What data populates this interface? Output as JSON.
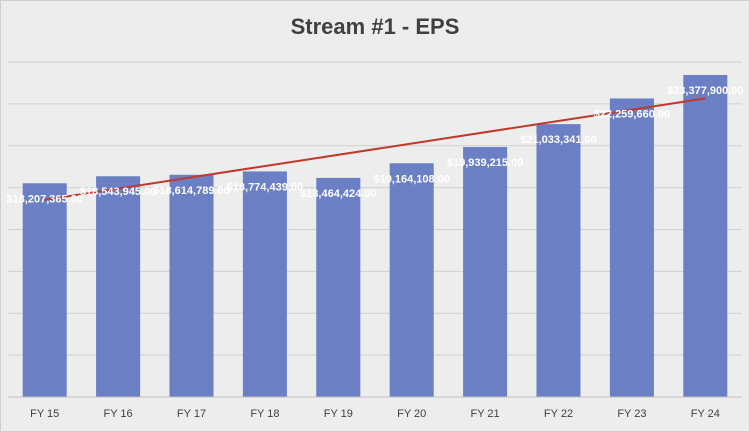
{
  "chart_data": {
    "type": "bar",
    "title": "Stream #1 - EPS",
    "categories": [
      "FY 15",
      "FY 16",
      "FY 17",
      "FY 18",
      "FY 19",
      "FY 20",
      "FY 21",
      "FY 22",
      "FY 23",
      "FY 24"
    ],
    "series": [
      {
        "name": "EPS",
        "values": [
          18207365,
          18543945,
          18614789,
          18774439,
          18464424,
          19164108,
          19939215,
          21033341,
          22259660,
          23377900
        ],
        "labels": [
          "$18,207,365.00",
          "$18,543,945.00",
          "$18,614,789.00",
          "$18,774,439.00",
          "$18,464,424.00",
          "$19,164,108.00",
          "$19,939,215.00",
          "$21,033,341.00",
          "$22,259,660.00",
          "$23,377,900.00"
        ],
        "color": "#6b7fc4"
      }
    ],
    "trendline": {
      "type": "linear",
      "color": "#c0392b"
    },
    "ylim": [
      8000000,
      24000000
    ],
    "ygrid_step": 2000000,
    "xlabel": "",
    "ylabel": "",
    "grid": true,
    "background": "#ededed"
  }
}
